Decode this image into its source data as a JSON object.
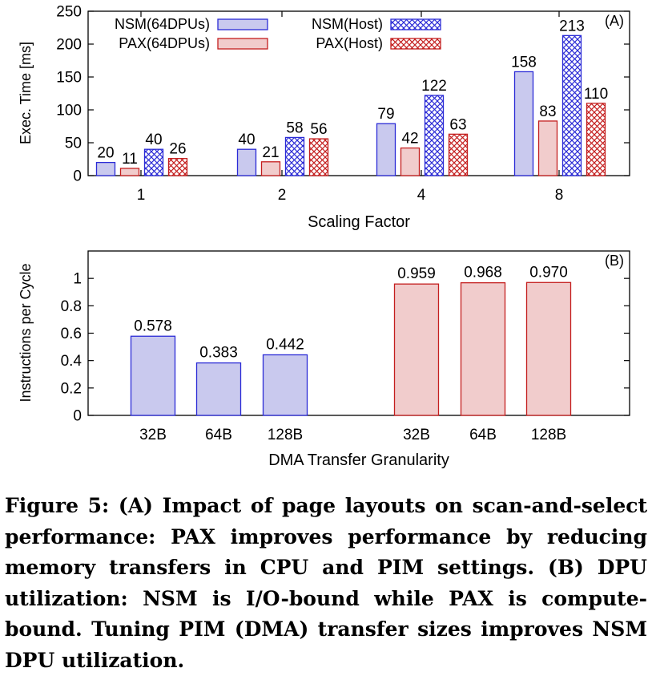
{
  "chart_data": [
    {
      "type": "bar",
      "panel_label": "(A)",
      "xlabel": "Scaling Factor",
      "ylabel": "Exec. Time [ms]",
      "ylim": [
        0,
        250
      ],
      "yticks": [
        0,
        50,
        100,
        150,
        200,
        250
      ],
      "categories": [
        "1",
        "2",
        "4",
        "8"
      ],
      "legend_position": "top-left",
      "grid": false,
      "series": [
        {
          "name": "NSM(64DPUs)",
          "values": [
            20,
            40,
            79,
            158
          ],
          "color": "#c9c9ee",
          "stroke": "#2b2bd6",
          "pattern": "solid"
        },
        {
          "name": "PAX(64DPUs)",
          "values": [
            11,
            21,
            42,
            83
          ],
          "color": "#f1cccc",
          "stroke": "#c41e1e",
          "pattern": "solid"
        },
        {
          "name": "NSM(Host)",
          "values": [
            40,
            58,
            122,
            213
          ],
          "color": "#2b2bd6",
          "stroke": "#2b2bd6",
          "pattern": "crosshatch"
        },
        {
          "name": "PAX(Host)",
          "values": [
            26,
            56,
            63,
            110
          ],
          "color": "#c41e1e",
          "stroke": "#c41e1e",
          "pattern": "crosshatch"
        }
      ],
      "value_labels": [
        [
          "20",
          "40",
          "79",
          "158"
        ],
        [
          "11",
          "21",
          "42",
          "83"
        ],
        [
          "40",
          "58",
          "122",
          "213"
        ],
        [
          "26",
          "56",
          "63",
          "110"
        ]
      ]
    },
    {
      "type": "bar",
      "panel_label": "(B)",
      "xlabel": "DMA Transfer Granularity",
      "ylabel": "Instructions per Cycle",
      "ylim": [
        0,
        1.2
      ],
      "yticks": [
        0,
        0.2,
        0.4,
        0.6,
        0.8,
        1
      ],
      "ytick_labels": [
        "0",
        "0.2",
        "0.4",
        "0.6",
        "0.8",
        "1"
      ],
      "grid": false,
      "groups": [
        {
          "categories": [
            "32B",
            "64B",
            "128B"
          ],
          "values": [
            0.578,
            0.383,
            0.442
          ],
          "value_labels": [
            "0.578",
            "0.383",
            "0.442"
          ],
          "color": "#c9c9ee",
          "stroke": "#2b2bd6"
        },
        {
          "categories": [
            "32B",
            "64B",
            "128B"
          ],
          "values": [
            0.959,
            0.968,
            0.97
          ],
          "value_labels": [
            "0.959",
            "0.968",
            "0.970"
          ],
          "color": "#f1cccc",
          "stroke": "#c41e1e"
        }
      ]
    }
  ],
  "caption": "Figure 5: (A) Impact of page layouts on scan-and-select performance: PAX improves performance by reducing memory transfers in CPU and PIM settings. (B) DPU utilization: NSM is I/O-bound while PAX is compute-bound. Tuning PIM (DMA) transfer sizes improves NSM DPU utilization."
}
